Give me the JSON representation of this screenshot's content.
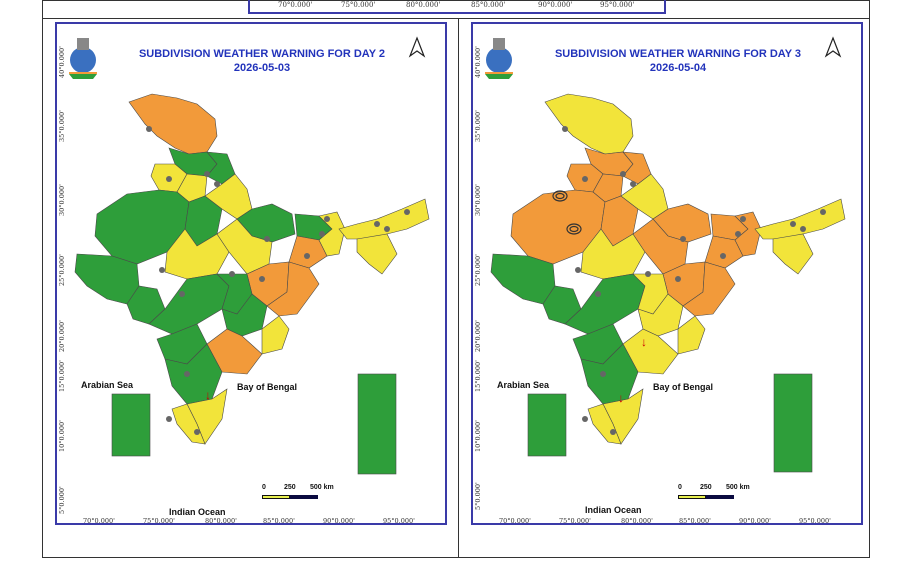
{
  "top_strip": {
    "ticks": [
      "70°0.000'",
      "75°0.000'",
      "80°0.000'",
      "85°0.000'",
      "90°0.000'",
      "95°0.000'"
    ]
  },
  "panels": [
    {
      "title": "SUBDIVISION WEATHER WARNING FOR DAY 2",
      "date": "2026-05-03",
      "sea_labels": {
        "arabian": "Arabian Sea",
        "bengal": "Bay of Bengal",
        "indian": "Indian Ocean"
      },
      "scale": {
        "zero": "0",
        "mid": "250",
        "end": "500 km"
      },
      "lon_ticks": [
        "70°0.000'",
        "75°0.000'",
        "80°0.000'",
        "85°0.000'",
        "90°0.000'",
        "95°0.000'"
      ],
      "lat_ticks": [
        "40°0.000'",
        "35°0.000'",
        "30°0.000'",
        "25°0.000'",
        "20°0.000'",
        "15°0.000'",
        "10°0.000'",
        "5°0.000'"
      ]
    },
    {
      "title": "SUBDIVISION WEATHER WARNING FOR DAY 3",
      "date": "2026-05-04",
      "sea_labels": {
        "arabian": "Arabian Sea",
        "bengal": "Bay of Bengal",
        "indian": "Indian Ocean"
      },
      "scale": {
        "zero": "0",
        "mid": "250",
        "end": "500 km"
      },
      "lon_ticks": [
        "70°0.000'",
        "75°0.000'",
        "80°0.000'",
        "85°0.000'",
        "90°0.000'",
        "95°0.000'"
      ],
      "lat_ticks": [
        "40°0.000'",
        "35°0.000'",
        "30°0.000'",
        "25°0.000'",
        "20°0.000'",
        "15°0.000'",
        "10°0.000'",
        "5°0.000'"
      ]
    }
  ],
  "colors": {
    "green": "#2e9e3a",
    "yellow": "#f2e43a",
    "orange": "#f29a3a",
    "frame": "#3a3aa8",
    "title": "#2233bb"
  }
}
